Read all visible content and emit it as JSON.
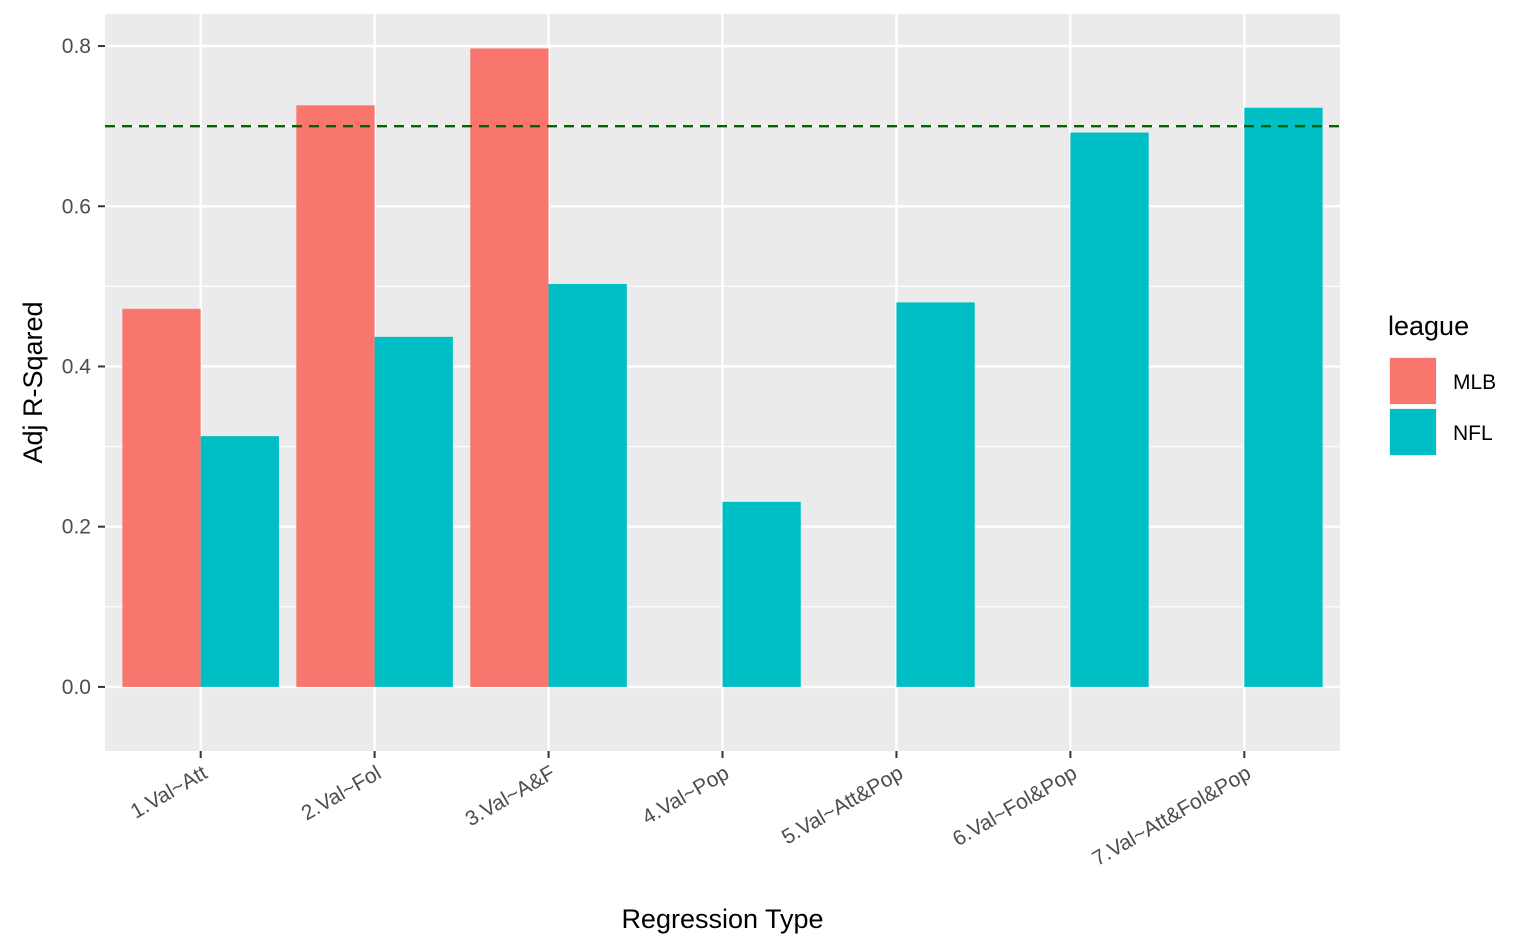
{
  "chart_data": {
    "type": "bar",
    "xlabel": "Regression Type",
    "ylabel": "Adj R-Sqared",
    "categories": [
      "1.Val~Att",
      "2.Val~Fol",
      "3.Val~A&F",
      "4.Val~Pop",
      "5.Val~Att&Pop",
      "6.Val~Fol&Pop",
      "7.Val~Att&Fol&Pop"
    ],
    "series": [
      {
        "name": "MLB",
        "color": "#F8766D",
        "values": [
          0.472,
          0.726,
          0.797,
          null,
          null,
          null,
          null
        ]
      },
      {
        "name": "NFL",
        "color": "#00BFC4",
        "values": [
          0.313,
          0.437,
          0.503,
          0.231,
          0.48,
          0.692,
          0.723
        ]
      }
    ],
    "yticks": [
      "0.0",
      "0.2",
      "0.4",
      "0.6",
      "0.8"
    ],
    "ylim": [
      -0.08,
      0.84
    ],
    "reference_line": {
      "y": 0.7,
      "color": "#006400",
      "style": "dashed"
    },
    "grid": true,
    "legend": {
      "title": "league",
      "position": "right"
    },
    "panel_background": "#EBEBEB",
    "grid_color": "#FFFFFF"
  }
}
